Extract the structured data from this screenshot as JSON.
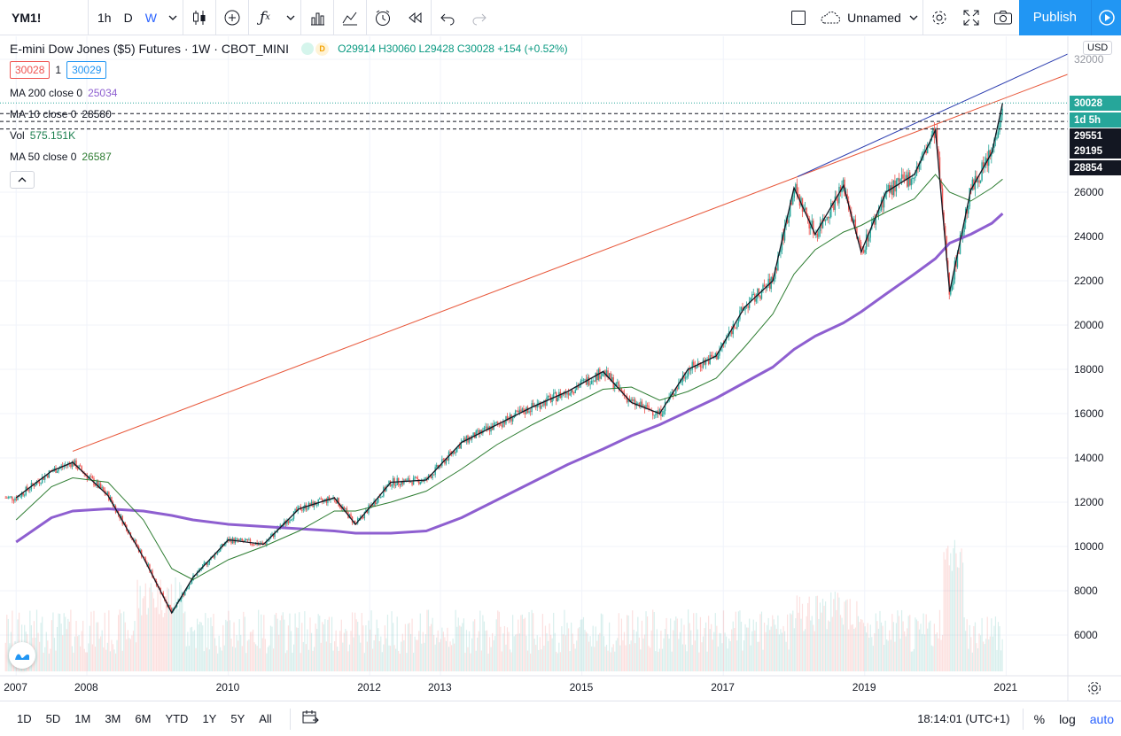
{
  "toolbar": {
    "symbol": "YM1!",
    "intervals": [
      "1h",
      "D",
      "W"
    ],
    "active_interval": "W",
    "layout_name": "Unnamed",
    "publish_label": "Publish"
  },
  "legend": {
    "title": "E-mini Dow Jones ($5) Futures · 1W · CBOT_MINI",
    "badge": "D",
    "open": "O29914",
    "high": "H30060",
    "low": "L29428",
    "close": "C30028",
    "change": "+154 (+0.52%)",
    "bid": "30028",
    "spread": "1",
    "ask": "30029",
    "indicators": [
      {
        "label": "MA 200 close 0",
        "value": "25034",
        "color": "#8e5fd0"
      },
      {
        "label": "MA 10 close 0",
        "value": "28580",
        "color": "#131722"
      },
      {
        "label": "Vol",
        "value": "575.151K",
        "color": "#26a69a"
      },
      {
        "label": "MA 50 close 0",
        "value": "26587",
        "color": "#2e7d32"
      }
    ]
  },
  "price_axis": {
    "currency": "USD",
    "ticks": [
      "32000",
      "26000",
      "24000",
      "22000",
      "20000",
      "18000",
      "16000",
      "14000",
      "12000",
      "10000",
      "8000",
      "6000"
    ],
    "labels": [
      {
        "text": "30028",
        "bg": "#26a69a",
        "fg": "#ffffff"
      },
      {
        "text": "1d 5h",
        "bg": "#26a69a",
        "fg": "#ffffff"
      },
      {
        "text": "29551",
        "bg": "#131722",
        "fg": "#ffffff"
      },
      {
        "text": "29195",
        "bg": "#131722",
        "fg": "#ffffff"
      },
      {
        "text": "28854",
        "bg": "#131722",
        "fg": "#ffffff"
      }
    ]
  },
  "time_axis": {
    "ticks": [
      "2007",
      "2008",
      "2010",
      "2012",
      "2013",
      "2015",
      "2017",
      "2019",
      "2021"
    ]
  },
  "bottombar": {
    "ranges": [
      "1D",
      "5D",
      "1M",
      "3M",
      "6M",
      "YTD",
      "1Y",
      "5Y",
      "All"
    ],
    "clock": "18:14:01 (UTC+1)",
    "percent": "%",
    "log": "log",
    "auto": "auto"
  },
  "colors": {
    "accent": "#2196f3",
    "up": "#26a69a",
    "down": "#ef5350",
    "ma200": "#8e5fd0",
    "ma50": "#2e7d32",
    "ma10": "#131722",
    "trend_red": "#e8593c",
    "trend_blue": "#2e3fb0"
  },
  "chart_data": {
    "type": "line",
    "title": "E-mini Dow Jones ($5) Futures · 1W · CBOT_MINI",
    "ylabel": "USD",
    "ylim": [
      4500,
      32500
    ],
    "x": [
      2007.0,
      2007.5,
      2007.8,
      2008.3,
      2008.8,
      2009.2,
      2009.5,
      2010.0,
      2010.5,
      2011.0,
      2011.5,
      2011.8,
      2012.3,
      2012.8,
      2013.3,
      2013.8,
      2014.3,
      2014.8,
      2015.3,
      2015.7,
      2016.1,
      2016.5,
      2016.9,
      2017.3,
      2017.7,
      2018.0,
      2018.3,
      2018.7,
      2018.95,
      2019.3,
      2019.7,
      2020.0,
      2020.2,
      2020.5,
      2020.8,
      2020.95
    ],
    "series": [
      {
        "name": "Close",
        "values": [
          12200,
          13400,
          13800,
          12300,
          9500,
          7000,
          8600,
          10300,
          10100,
          11700,
          12200,
          11000,
          12900,
          13000,
          14700,
          15500,
          16300,
          17000,
          17900,
          16500,
          16000,
          18000,
          18600,
          20800,
          22000,
          26200,
          24100,
          26300,
          23300,
          26000,
          26800,
          28800,
          21500,
          26100,
          27800,
          30028
        ]
      },
      {
        "name": "MA 200 close 0",
        "values": [
          10200,
          11300,
          11600,
          11700,
          11600,
          11400,
          11200,
          11000,
          10900,
          10800,
          10700,
          10600,
          10600,
          10700,
          11300,
          12100,
          12900,
          13700,
          14400,
          15000,
          15500,
          16100,
          16700,
          17400,
          18100,
          18900,
          19500,
          20100,
          20600,
          21400,
          22300,
          23000,
          23700,
          24100,
          24600,
          25034
        ]
      },
      {
        "name": "MA 50 close 0",
        "values": [
          11200,
          12700,
          13100,
          12900,
          11200,
          9000,
          8500,
          9400,
          10000,
          10700,
          11600,
          11600,
          12000,
          12500,
          13500,
          14600,
          15500,
          16300,
          17100,
          17200,
          16600,
          17000,
          17600,
          19000,
          20500,
          22300,
          23400,
          24200,
          24500,
          25100,
          25700,
          26800,
          26000,
          25600,
          26200,
          26587
        ]
      }
    ],
    "annotations": [
      "29551",
      "29195",
      "28854"
    ]
  }
}
